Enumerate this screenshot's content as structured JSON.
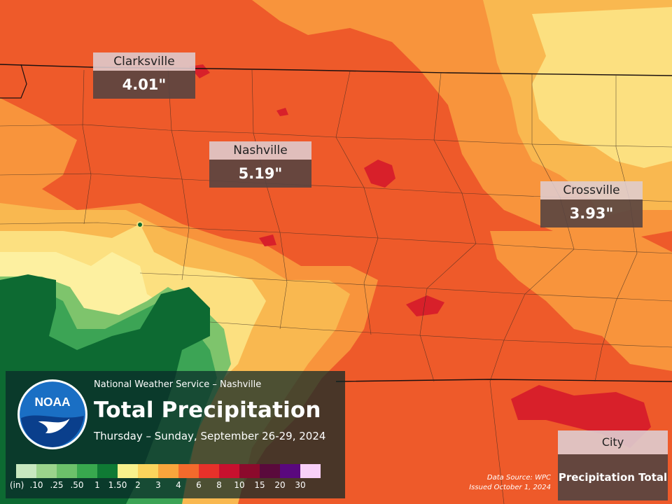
{
  "header": {
    "office": "National Weather Service – Nashville",
    "title": "Total Precipitation",
    "date_range": "Thursday – Sunday, September  26-29, 2024",
    "logo_text": "NOAA"
  },
  "cities": [
    {
      "name": "Clarksville",
      "value": "4.01\""
    },
    {
      "name": "Nashville",
      "value": "5.19\""
    },
    {
      "name": "Crossville",
      "value": "3.93\""
    }
  ],
  "legend": {
    "unit": "(in)",
    "labels": [
      ".10",
      ".25",
      ".50",
      "1",
      "1.50",
      "2",
      "3",
      "4",
      "6",
      "8",
      "10",
      "15",
      "20",
      "30"
    ],
    "colors": [
      "#c8e8c0",
      "#9bd48c",
      "#6cc16a",
      "#38a84e",
      "#0f7a34",
      "#f8f18c",
      "#fbd45c",
      "#f9a53c",
      "#f46a2c",
      "#e8312a",
      "#c8102e",
      "#8c0a2c",
      "#5a0a3c",
      "#5a087e",
      "#f8d0f8"
    ]
  },
  "attribution": {
    "source": "Data Source: WPC",
    "issued": "Issued October 1, 2024"
  },
  "key": {
    "city_label": "City",
    "total_label": "Precipitation Total"
  },
  "map_colors": {
    "orange_red": "#ee5a2a",
    "orange": "#f8943c",
    "light_orange": "#f9b850",
    "yellow": "#fce080",
    "pale_yellow": "#fdf0a0",
    "red": "#d8202a",
    "dark_green": "#0d6a32",
    "green": "#3ca455",
    "light_green": "#7ec46c",
    "borders": "#3a2a20"
  }
}
